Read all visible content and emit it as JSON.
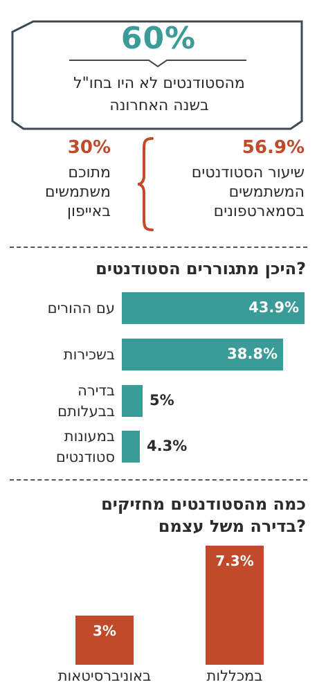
{
  "colors": {
    "teal": "#3b9b97",
    "orange": "#c04a2a",
    "text": "#2b2b2b",
    "frame": "#3d4a54"
  },
  "headline": {
    "percent": "60%",
    "line1": "מהסטודנטים לא היו בחו\"ל",
    "line2": "בשנה האחרונה"
  },
  "stats": {
    "right": {
      "value": "56.9%",
      "lines": [
        "שיעור הסטודנטים",
        "המשתמשים",
        "בסמארטפונים"
      ]
    },
    "left": {
      "value": "30%",
      "lines": [
        "מתוכם",
        "משתמשים",
        "באייפון"
      ]
    }
  },
  "living": {
    "title": "היכן מתגוררים הסטודנטים?"
  },
  "ownership": {
    "title_line1": "כמה מהסטודנטים מחזיקים",
    "title_line2": "בדירה משל עצמם?"
  },
  "chart_data": [
    {
      "type": "bar",
      "title": "היכן מתגוררים הסטודנטים?",
      "categories": [
        [
          "עם ההורים"
        ],
        [
          "בשכירות"
        ],
        [
          "בדירה",
          "בבעלותם"
        ],
        [
          "במעונות",
          "סטודנטים"
        ]
      ],
      "values": [
        43.9,
        38.8,
        5,
        4.3
      ],
      "value_labels": [
        "43.9%",
        "38.8%",
        "5%",
        "4.3%"
      ],
      "color": "#3b9b97"
    },
    {
      "type": "bar",
      "title": "כמה מהסטודנטים מחזיקים בדירה משל עצמם?",
      "categories": [
        "במכללות",
        "באוניברסיטאות"
      ],
      "values": [
        7.3,
        3
      ],
      "value_labels": [
        "7.3%",
        "3%"
      ],
      "color": "#c04a2a"
    }
  ]
}
